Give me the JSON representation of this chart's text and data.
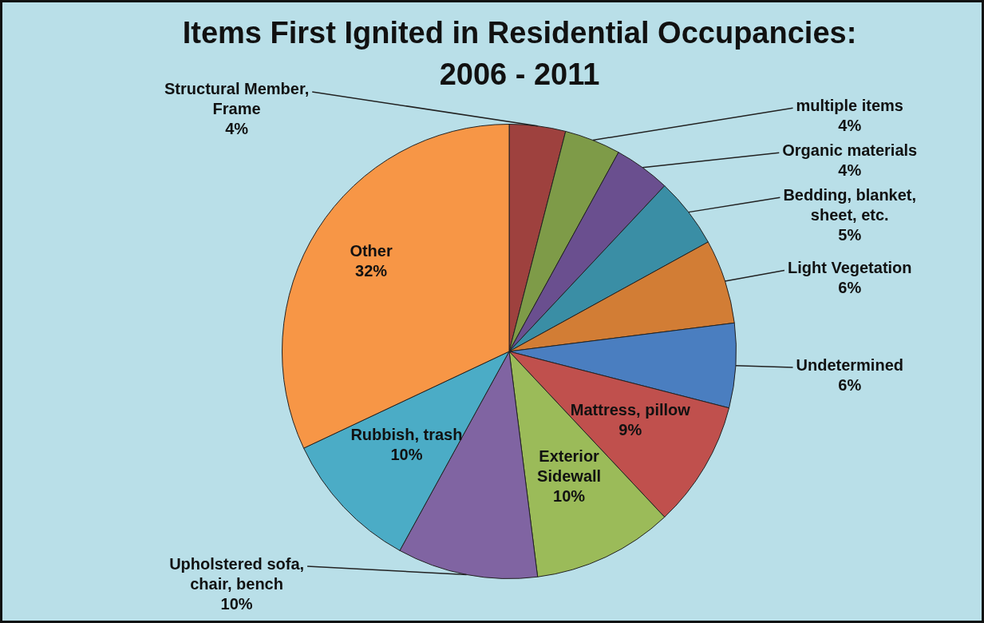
{
  "chart_data": {
    "type": "pie",
    "title": "Items First Ignited in Residential Occupancies: 2006 - 2011",
    "categories": [
      "Structural Member, Frame",
      "multiple items",
      "Organic materials",
      "Bedding, blanket, sheet, etc.",
      "Light Vegetation",
      "Undetermined",
      "Mattress, pillow",
      "Exterior Sidewall",
      "Upholstered sofa, chair, bench",
      "Rubbish, trash",
      "Other"
    ],
    "values": [
      4,
      4,
      4,
      5,
      6,
      6,
      9,
      10,
      10,
      10,
      32
    ],
    "value_labels": [
      "4%",
      "4%",
      "4%",
      "5%",
      "6%",
      "6%",
      "9%",
      "10%",
      "10%",
      "10%",
      "32%"
    ],
    "colors": [
      "#9e413e",
      "#7e9b48",
      "#6a4f8f",
      "#3a8ea5",
      "#d27d35",
      "#4a7ec0",
      "#c0504d",
      "#9bbb59",
      "#8064a2",
      "#4bacc6",
      "#f79646"
    ]
  }
}
